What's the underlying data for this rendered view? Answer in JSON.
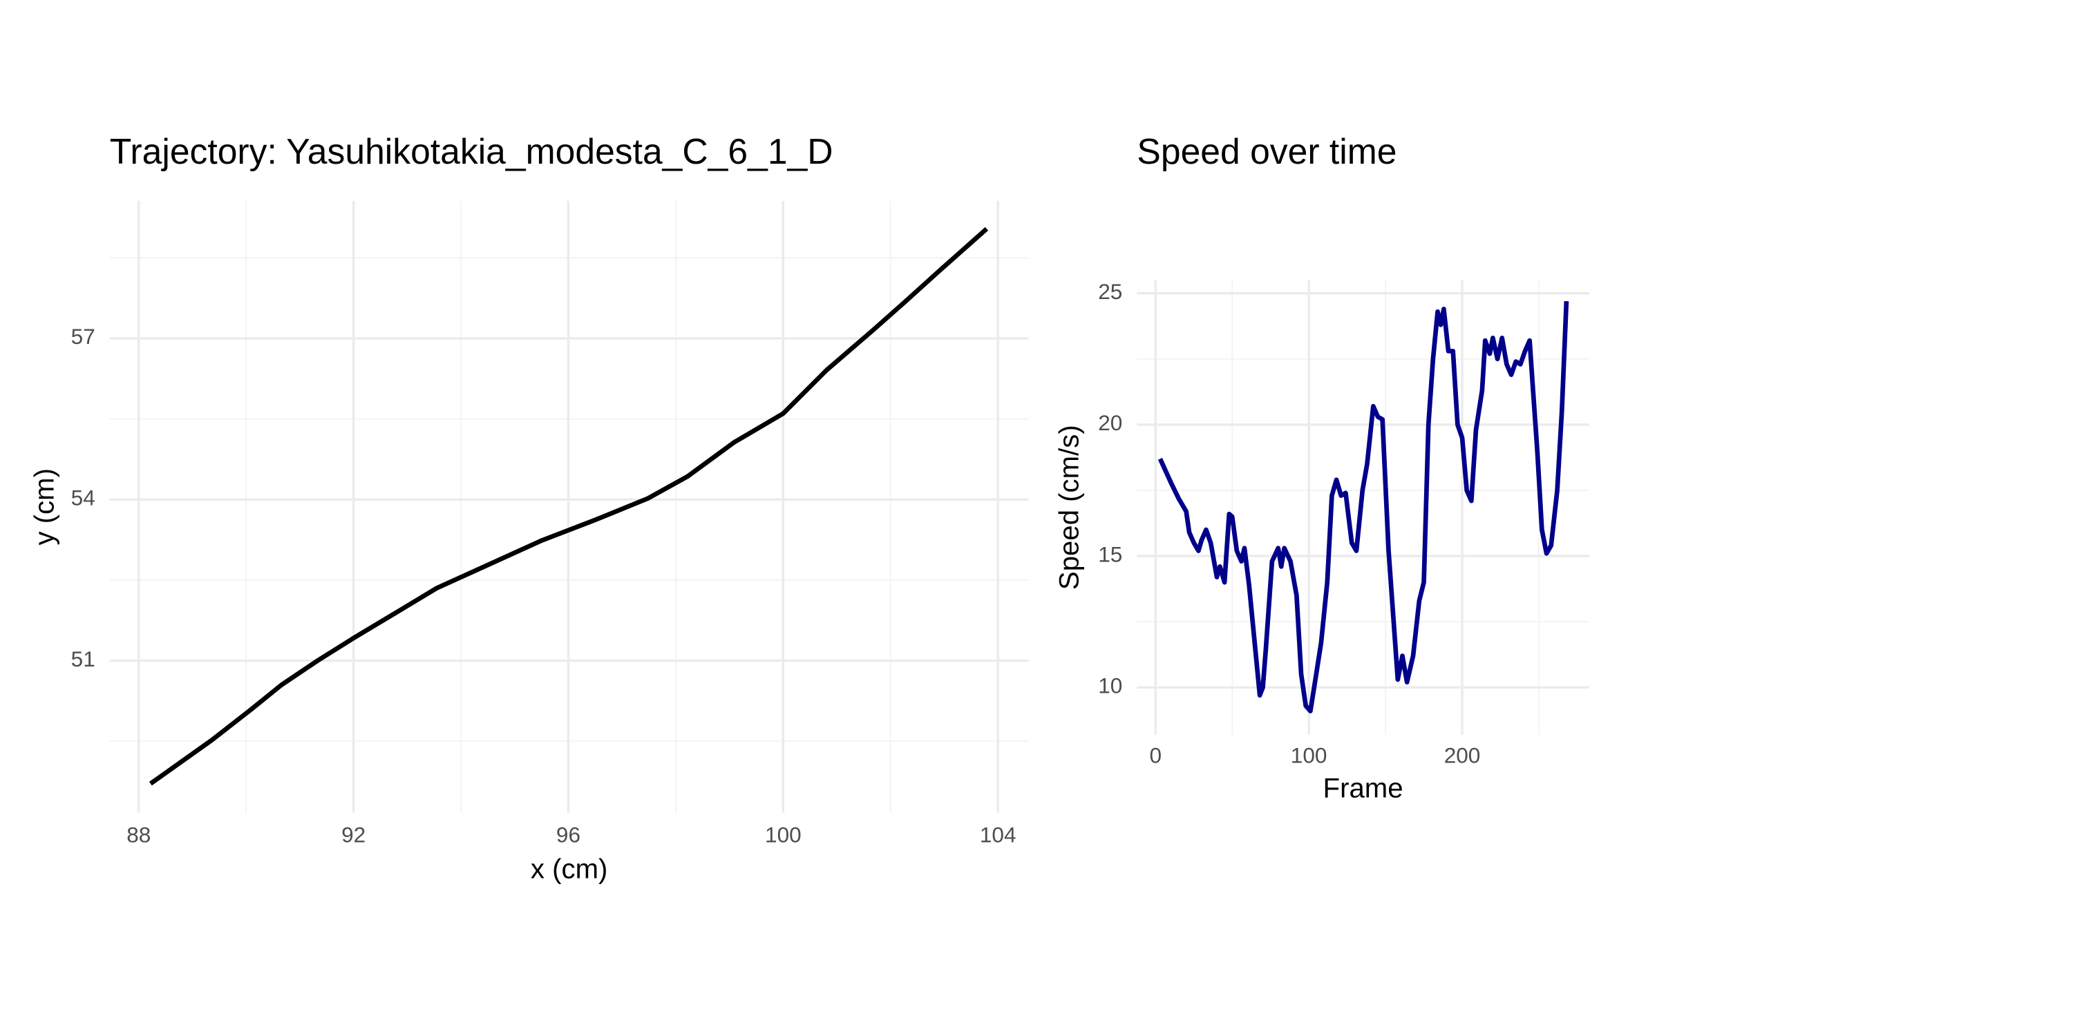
{
  "chart_data": [
    {
      "type": "line",
      "title": "Trajectory: Yasuhikotakia_modesta_C_6_1_D",
      "x_label": "x (cm)",
      "y_label": "y (cm)",
      "color": "#000000",
      "x": [
        88.22,
        88.74,
        89.36,
        90.09,
        90.66,
        91.33,
        92.0,
        92.8,
        93.55,
        94.52,
        95.51,
        96.5,
        97.48,
        98.22,
        99.08,
        100.0,
        100.81,
        101.67,
        102.28,
        102.9,
        103.79
      ],
      "values": [
        48.71,
        49.08,
        49.52,
        50.09,
        50.55,
        51.0,
        51.42,
        51.9,
        52.35,
        52.79,
        53.24,
        53.62,
        54.02,
        54.43,
        55.06,
        55.6,
        56.41,
        57.15,
        57.69,
        58.25,
        59.04
      ],
      "xlim": [
        87.46,
        104.57
      ],
      "xticks": [
        88,
        92,
        96,
        100,
        104
      ],
      "ylim": [
        48.17,
        59.56
      ],
      "yticks": [
        51,
        54,
        57
      ],
      "grid": true
    },
    {
      "type": "line",
      "title": "Speed over time",
      "x_label": "Frame",
      "y_label": "Speed (cm/s)",
      "color": "#00008b",
      "x": [
        3,
        10,
        15,
        20,
        22,
        25,
        28,
        30,
        33,
        36,
        40,
        42,
        45,
        48,
        50,
        53,
        56,
        58,
        61,
        65,
        68,
        70,
        72,
        76,
        80,
        82,
        84,
        88,
        92,
        95,
        98,
        101,
        104,
        108,
        112,
        115,
        118,
        121,
        124,
        128,
        131,
        135,
        138,
        142,
        145,
        148,
        152,
        158,
        161,
        164,
        168,
        172,
        175,
        178,
        181,
        184,
        186,
        188,
        191,
        194,
        197,
        200,
        203,
        206,
        209,
        213,
        215,
        218,
        220,
        223,
        226,
        229,
        232,
        235,
        238,
        241,
        244,
        246,
        249,
        252,
        255,
        258,
        262,
        265,
        268
      ],
      "values": [
        18.7,
        17.8,
        17.2,
        16.7,
        15.9,
        15.5,
        15.2,
        15.6,
        16,
        15.5,
        14.2,
        14.6,
        14.0,
        16.6,
        16.5,
        15.2,
        14.8,
        15.3,
        13.9,
        11.5,
        9.7,
        10,
        11.5,
        14.8,
        15.3,
        14.6,
        15.3,
        14.8,
        13.5,
        10.5,
        9.3,
        9.1,
        10.2,
        11.7,
        14,
        17.3,
        17.9,
        17.3,
        17.4,
        15.5,
        15.2,
        17.5,
        18.5,
        20.7,
        20.3,
        20.2,
        15.2,
        10.3,
        11.2,
        10.2,
        11.2,
        13.3,
        14,
        20,
        22.5,
        24.3,
        23.8,
        24.4,
        22.8,
        22.8,
        20,
        19.5,
        17.5,
        17.1,
        19.8,
        21.3,
        23.2,
        22.7,
        23.3,
        22.5,
        23.3,
        22.3,
        21.9,
        22.4,
        22.3,
        22.8,
        23.2,
        21.5,
        19,
        16,
        15.1,
        15.4,
        17.5,
        20.5,
        24.7
      ],
      "xlim": [
        -12.1,
        282.8
      ],
      "xticks": [
        0,
        100,
        200
      ],
      "ylim": [
        8.2,
        25.5
      ],
      "yticks": [
        10,
        15,
        20,
        25
      ],
      "grid": true
    }
  ]
}
